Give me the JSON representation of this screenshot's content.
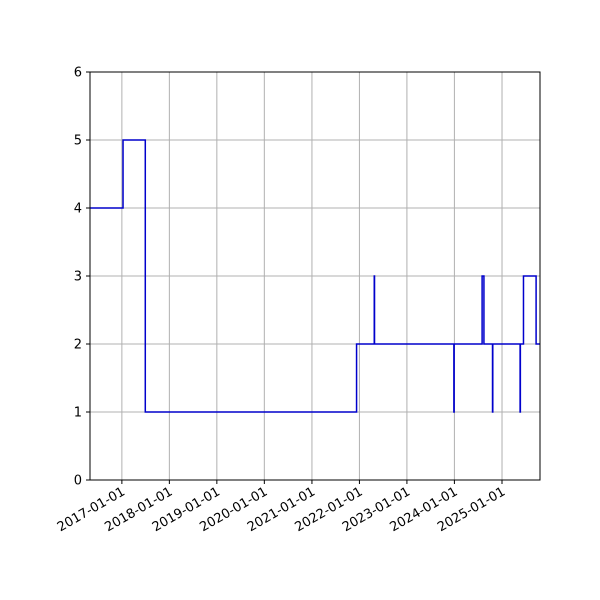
{
  "chart_data": {
    "type": "line",
    "step": "post",
    "title": "",
    "xlabel": "",
    "ylabel": "",
    "grid": true,
    "legend": "none",
    "line_color": "#0000cc",
    "grid_color": "#b0b0b0",
    "xlim": [
      "2016-05-01",
      "2025-10-20"
    ],
    "ylim": [
      0,
      6
    ],
    "x_ticks": [
      "2017-01-01",
      "2018-01-01",
      "2019-01-01",
      "2020-01-01",
      "2021-01-01",
      "2022-01-01",
      "2023-01-01",
      "2024-01-01",
      "2025-01-01"
    ],
    "y_ticks": [
      0,
      1,
      2,
      3,
      4,
      5,
      6
    ],
    "series": [
      {
        "x": [
          "2016-05-01",
          "2017-01-10",
          "2017-06-30",
          "2021-12-10",
          "2022-04-25",
          "2022-04-27",
          "2023-12-28",
          "2023-12-30",
          "2024-08-01",
          "2024-08-15",
          "2024-10-20",
          "2024-10-22",
          "2025-05-20",
          "2025-05-22",
          "2025-06-15",
          "2025-09-20",
          "2025-10-20"
        ],
        "y": [
          4,
          5,
          1,
          2,
          3,
          2,
          1,
          2,
          3,
          2,
          1,
          2,
          1,
          2,
          3,
          2,
          2
        ]
      }
    ]
  }
}
